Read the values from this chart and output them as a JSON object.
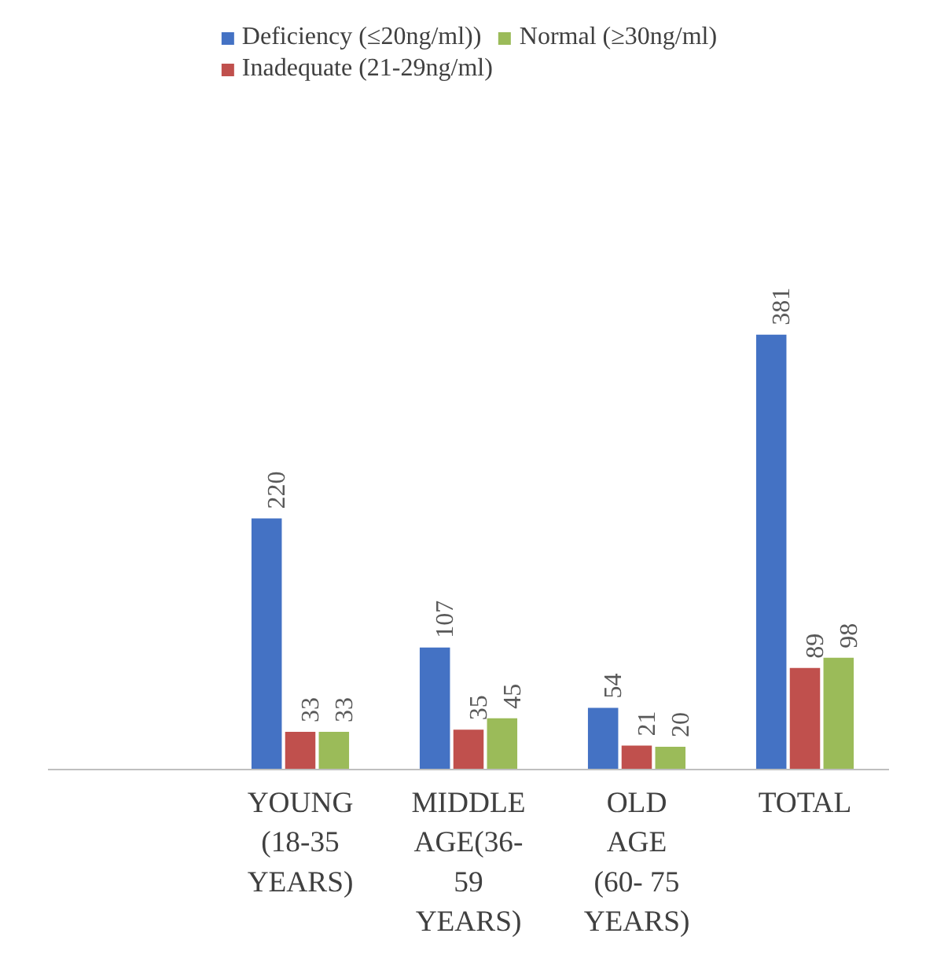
{
  "chart_data": {
    "type": "bar",
    "categories": [
      "YOUNG\n(18-35\nYEARS)",
      "MIDDLE\nAGE(36-\n59\nYEARS)",
      "OLD\nAGE\n(60- 75\nYEARS)",
      "TOTAL"
    ],
    "series": [
      {
        "name": "Deficiency (≤20ng/ml))",
        "color": "#4472c4",
        "values": [
          220,
          107,
          54,
          381
        ]
      },
      {
        "name": "Inadequate (21-29ng/ml)",
        "color": "#c0504d",
        "values": [
          33,
          35,
          21,
          89
        ]
      },
      {
        "name": "Normal (≥30ng/ml)",
        "color": "#9bbb59",
        "values": [
          33,
          45,
          20,
          98
        ]
      }
    ],
    "data_labels": true,
    "legend": "top"
  }
}
